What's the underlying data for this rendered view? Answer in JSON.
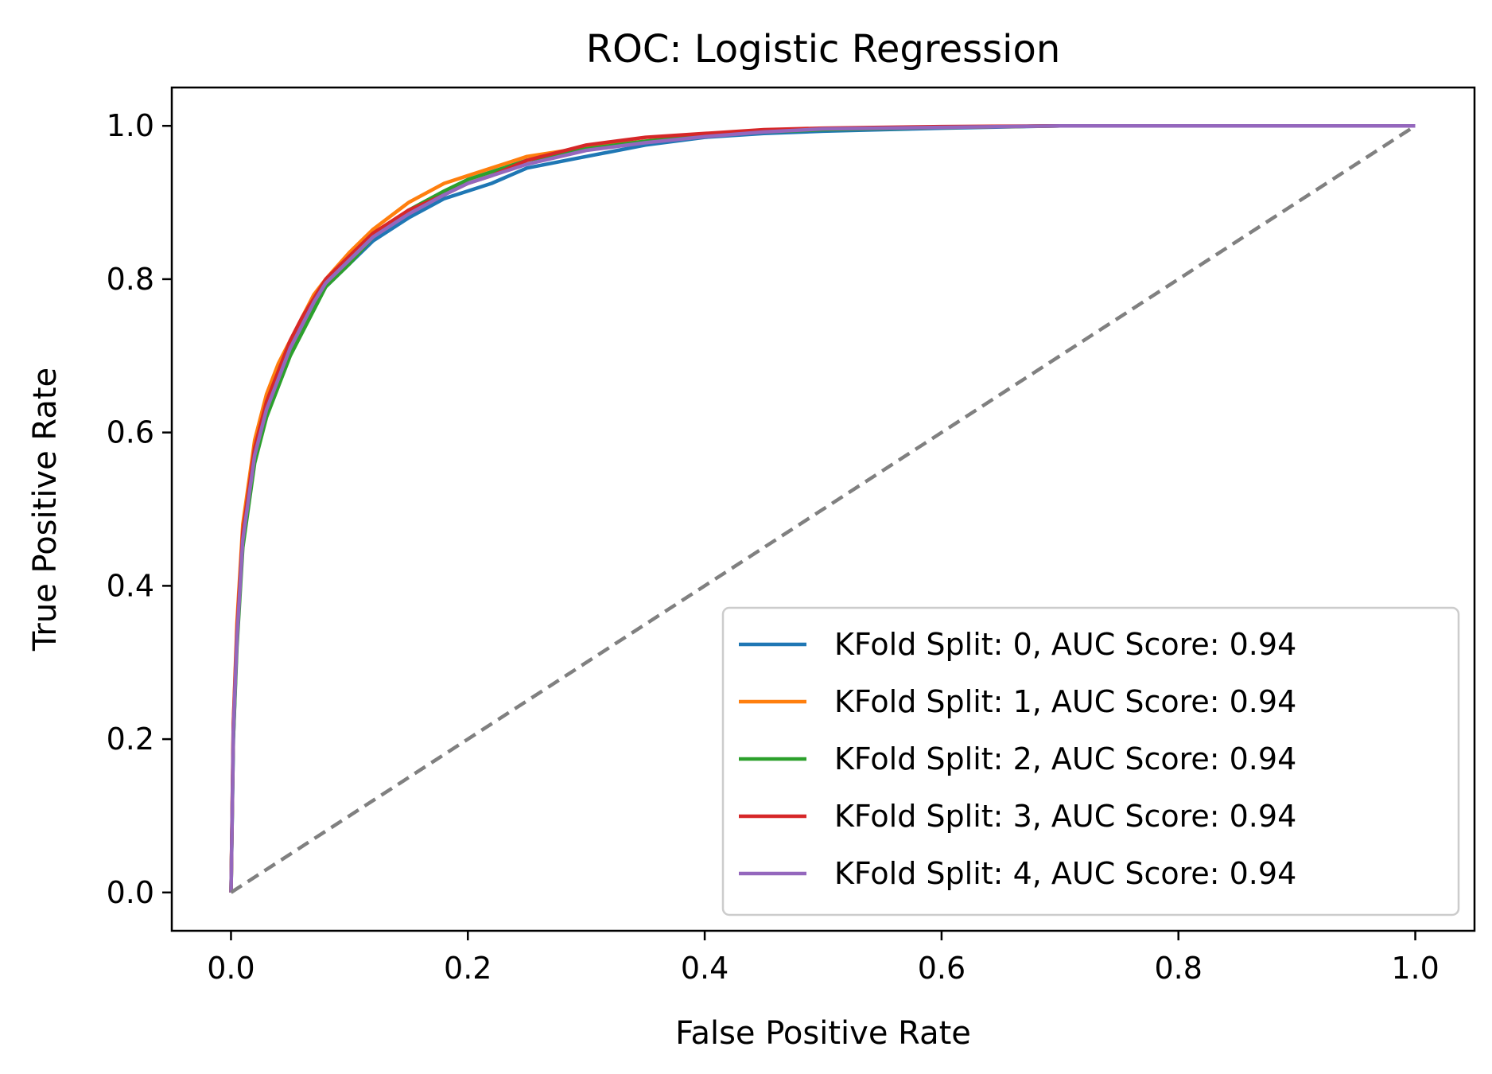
{
  "chart_data": {
    "type": "line",
    "title": "ROC: Logistic Regression",
    "xlabel": "False Positive Rate",
    "ylabel": "True Positive Rate",
    "xlim": [
      -0.05,
      1.05
    ],
    "ylim": [
      -0.05,
      1.05
    ],
    "xticks": [
      0.0,
      0.2,
      0.4,
      0.6,
      0.8,
      1.0
    ],
    "yticks": [
      0.0,
      0.2,
      0.4,
      0.6,
      0.8,
      1.0
    ],
    "xtick_labels": [
      "0.0",
      "0.2",
      "0.4",
      "0.6",
      "0.8",
      "1.0"
    ],
    "ytick_labels": [
      "0.0",
      "0.2",
      "0.4",
      "0.6",
      "0.8",
      "1.0"
    ],
    "grid": false,
    "legend_position": "lower-right",
    "series": [
      {
        "name": "KFold Split: 0, AUC Score: 0.94",
        "color": "#1f77b4",
        "x": [
          0,
          0.002,
          0.005,
          0.01,
          0.02,
          0.03,
          0.04,
          0.05,
          0.06,
          0.07,
          0.08,
          0.1,
          0.12,
          0.15,
          0.18,
          0.2,
          0.22,
          0.25,
          0.3,
          0.35,
          0.4,
          0.45,
          0.5,
          0.6,
          0.7,
          0.8,
          0.9,
          1.0
        ],
        "y": [
          0,
          0.2,
          0.33,
          0.46,
          0.57,
          0.63,
          0.67,
          0.71,
          0.74,
          0.77,
          0.79,
          0.82,
          0.85,
          0.88,
          0.905,
          0.915,
          0.925,
          0.945,
          0.96,
          0.975,
          0.985,
          0.99,
          0.993,
          0.997,
          1.0,
          1.0,
          1.0,
          1.0
        ]
      },
      {
        "name": "KFold Split: 1, AUC Score: 0.94",
        "color": "#ff7f0e",
        "x": [
          0,
          0.002,
          0.005,
          0.01,
          0.02,
          0.03,
          0.04,
          0.05,
          0.06,
          0.07,
          0.08,
          0.1,
          0.12,
          0.15,
          0.18,
          0.2,
          0.22,
          0.25,
          0.3,
          0.35,
          0.4,
          0.45,
          0.5,
          0.6,
          0.7,
          0.8,
          0.9,
          1.0
        ],
        "y": [
          0,
          0.22,
          0.35,
          0.48,
          0.59,
          0.65,
          0.69,
          0.72,
          0.75,
          0.78,
          0.8,
          0.835,
          0.865,
          0.9,
          0.925,
          0.935,
          0.945,
          0.96,
          0.972,
          0.98,
          0.988,
          0.993,
          0.996,
          0.998,
          1.0,
          1.0,
          1.0,
          1.0
        ]
      },
      {
        "name": "KFold Split: 2, AUC Score: 0.94",
        "color": "#2ca02c",
        "x": [
          0,
          0.002,
          0.005,
          0.01,
          0.02,
          0.03,
          0.04,
          0.05,
          0.06,
          0.07,
          0.08,
          0.1,
          0.12,
          0.15,
          0.18,
          0.2,
          0.22,
          0.25,
          0.3,
          0.35,
          0.4,
          0.45,
          0.5,
          0.6,
          0.7,
          0.8,
          0.9,
          1.0
        ],
        "y": [
          0,
          0.2,
          0.32,
          0.45,
          0.56,
          0.62,
          0.66,
          0.7,
          0.73,
          0.76,
          0.79,
          0.82,
          0.855,
          0.89,
          0.915,
          0.93,
          0.94,
          0.955,
          0.97,
          0.98,
          0.987,
          0.992,
          0.995,
          0.998,
          1.0,
          1.0,
          1.0,
          1.0
        ]
      },
      {
        "name": "KFold Split: 3, AUC Score: 0.94",
        "color": "#d62728",
        "x": [
          0,
          0.002,
          0.005,
          0.01,
          0.02,
          0.03,
          0.04,
          0.05,
          0.06,
          0.07,
          0.08,
          0.1,
          0.12,
          0.15,
          0.18,
          0.2,
          0.22,
          0.25,
          0.3,
          0.35,
          0.4,
          0.45,
          0.5,
          0.6,
          0.7,
          0.8,
          0.9,
          1.0
        ],
        "y": [
          0,
          0.22,
          0.34,
          0.47,
          0.58,
          0.64,
          0.68,
          0.72,
          0.75,
          0.775,
          0.8,
          0.83,
          0.86,
          0.89,
          0.91,
          0.925,
          0.935,
          0.955,
          0.975,
          0.985,
          0.99,
          0.995,
          0.997,
          0.999,
          1.0,
          1.0,
          1.0,
          1.0
        ]
      },
      {
        "name": "KFold Split: 4, AUC Score: 0.94",
        "color": "#9467bd",
        "x": [
          0,
          0.002,
          0.005,
          0.01,
          0.02,
          0.03,
          0.04,
          0.05,
          0.06,
          0.07,
          0.08,
          0.1,
          0.12,
          0.15,
          0.18,
          0.2,
          0.22,
          0.25,
          0.3,
          0.35,
          0.4,
          0.45,
          0.5,
          0.6,
          0.7,
          0.8,
          0.9,
          1.0
        ],
        "y": [
          0,
          0.21,
          0.33,
          0.46,
          0.57,
          0.63,
          0.67,
          0.71,
          0.74,
          0.77,
          0.795,
          0.825,
          0.855,
          0.885,
          0.91,
          0.925,
          0.935,
          0.95,
          0.968,
          0.978,
          0.986,
          0.992,
          0.996,
          0.998,
          1.0,
          1.0,
          1.0,
          1.0
        ]
      },
      {
        "name": "",
        "color": "#808080",
        "dash": true,
        "x": [
          0,
          1
        ],
        "y": [
          0,
          1
        ]
      }
    ]
  }
}
